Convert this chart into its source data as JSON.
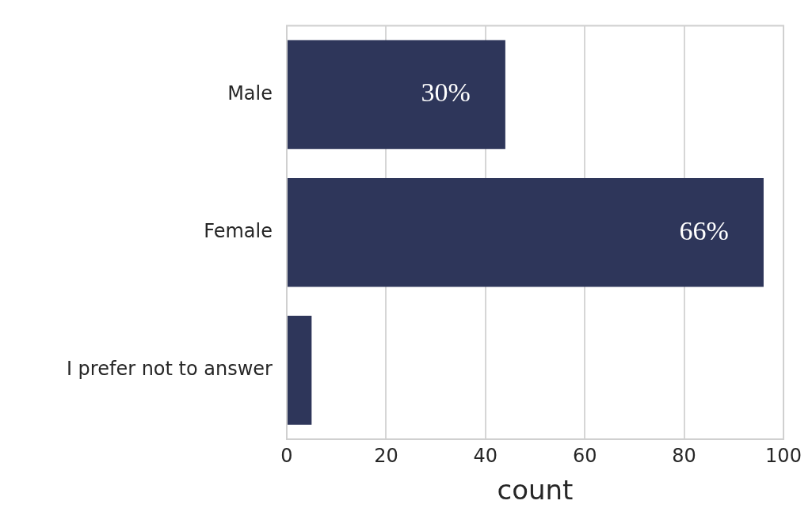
{
  "chart_data": {
    "type": "bar",
    "orientation": "horizontal",
    "xlabel": "count",
    "categories": [
      "Male",
      "Female",
      "I prefer not to answer"
    ],
    "values": [
      44,
      96,
      5
    ],
    "annotations": [
      {
        "text": "30%",
        "x": 32,
        "y": "Male"
      },
      {
        "text": "66%",
        "x": 84,
        "y": "Female"
      }
    ],
    "color": "#2e365a",
    "xlim": [
      0,
      100
    ],
    "xticks": [
      0,
      20,
      40,
      60,
      80,
      100
    ],
    "grid": "x",
    "legend": false
  }
}
